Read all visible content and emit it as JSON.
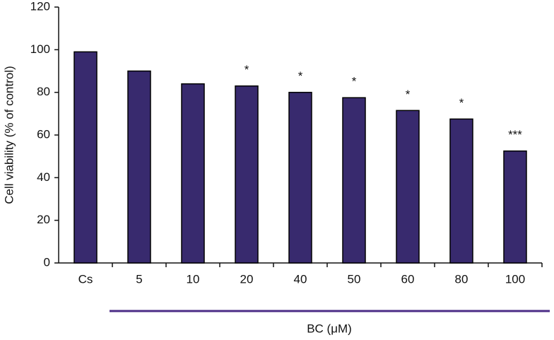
{
  "chart_data": {
    "type": "bar",
    "y_label": "Cell viability (% of control)",
    "x_label": "BC (μM)",
    "categories": [
      "Cs",
      "5",
      "10",
      "20",
      "40",
      "50",
      "60",
      "80",
      "100"
    ],
    "values": [
      99,
      90,
      84,
      83,
      80,
      77.5,
      71.5,
      67.5,
      52.5
    ],
    "annotations": [
      null,
      null,
      null,
      "*",
      "*",
      "*",
      "*",
      "*",
      "***"
    ],
    "color": "#382a6e",
    "ylim": [
      0,
      120
    ],
    "yticks": [
      0,
      20,
      40,
      60,
      80,
      100,
      120
    ],
    "grid": false
  }
}
